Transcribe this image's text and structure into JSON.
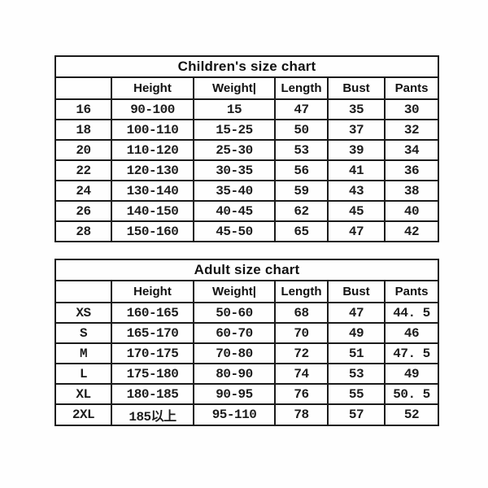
{
  "page": {
    "background": "#fefefe",
    "border_color": "#1b1b1b",
    "text_color": "#1c1c1c"
  },
  "chart_data": [
    {
      "type": "table",
      "title": "Children's size chart",
      "columns": [
        "",
        "Height",
        "Weight|",
        "Length",
        "Bust",
        "Pants"
      ],
      "rows": [
        [
          "16",
          "90-100",
          "15",
          "47",
          "35",
          "30"
        ],
        [
          "18",
          "100-110",
          "15-25",
          "50",
          "37",
          "32"
        ],
        [
          "20",
          "110-120",
          "25-30",
          "53",
          "39",
          "34"
        ],
        [
          "22",
          "120-130",
          "30-35",
          "56",
          "41",
          "36"
        ],
        [
          "24",
          "130-140",
          "35-40",
          "59",
          "43",
          "38"
        ],
        [
          "26",
          "140-150",
          "40-45",
          "62",
          "45",
          "40"
        ],
        [
          "28",
          "150-160",
          "45-50",
          "65",
          "47",
          "42"
        ]
      ]
    },
    {
      "type": "table",
      "title": "Adult size chart",
      "columns": [
        "",
        "Height",
        "Weight|",
        "Length",
        "Bust",
        "Pants"
      ],
      "rows": [
        [
          "XS",
          "160-165",
          "50-60",
          "68",
          "47",
          "44. 5"
        ],
        [
          "S",
          "165-170",
          "60-70",
          "70",
          "49",
          "46"
        ],
        [
          "M",
          "170-175",
          "70-80",
          "72",
          "51",
          "47. 5"
        ],
        [
          "L",
          "175-180",
          "80-90",
          "74",
          "53",
          "49"
        ],
        [
          "XL",
          "180-185",
          "90-95",
          "76",
          "55",
          "50. 5"
        ],
        [
          "2XL",
          "185以上",
          "95-110",
          "78",
          "57",
          "52"
        ]
      ]
    }
  ]
}
